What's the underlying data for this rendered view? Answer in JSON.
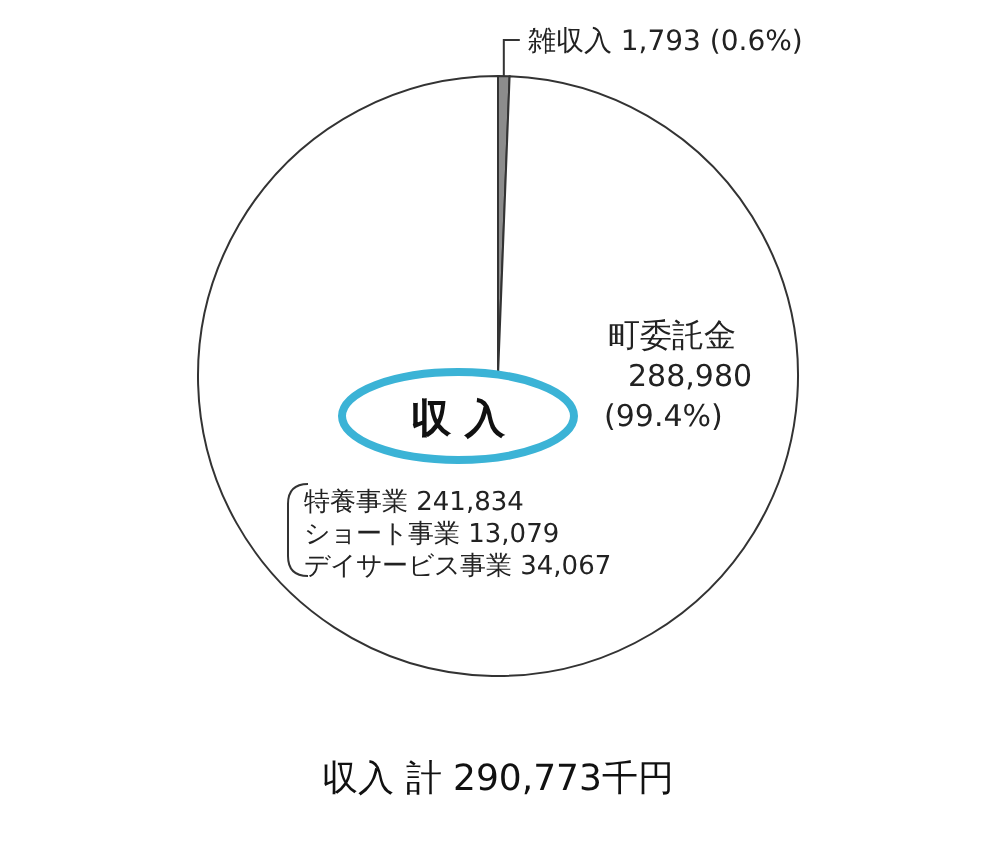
{
  "chart_data": {
    "type": "pie",
    "title": "収 入",
    "categories": [
      "雑収入",
      "町委託金"
    ],
    "values": [
      1793,
      288980
    ],
    "colors": [
      "#8c8c8c",
      "#ffffff"
    ],
    "value_labels": [
      "1,793 (0.6%)",
      "288,980 (99.4%)"
    ],
    "annotations": [
      "特養事業 241,834",
      "ショート事業 13,079",
      "デイサービス事業 34,067",
      "収入 計 290,773千円"
    ]
  }
}
